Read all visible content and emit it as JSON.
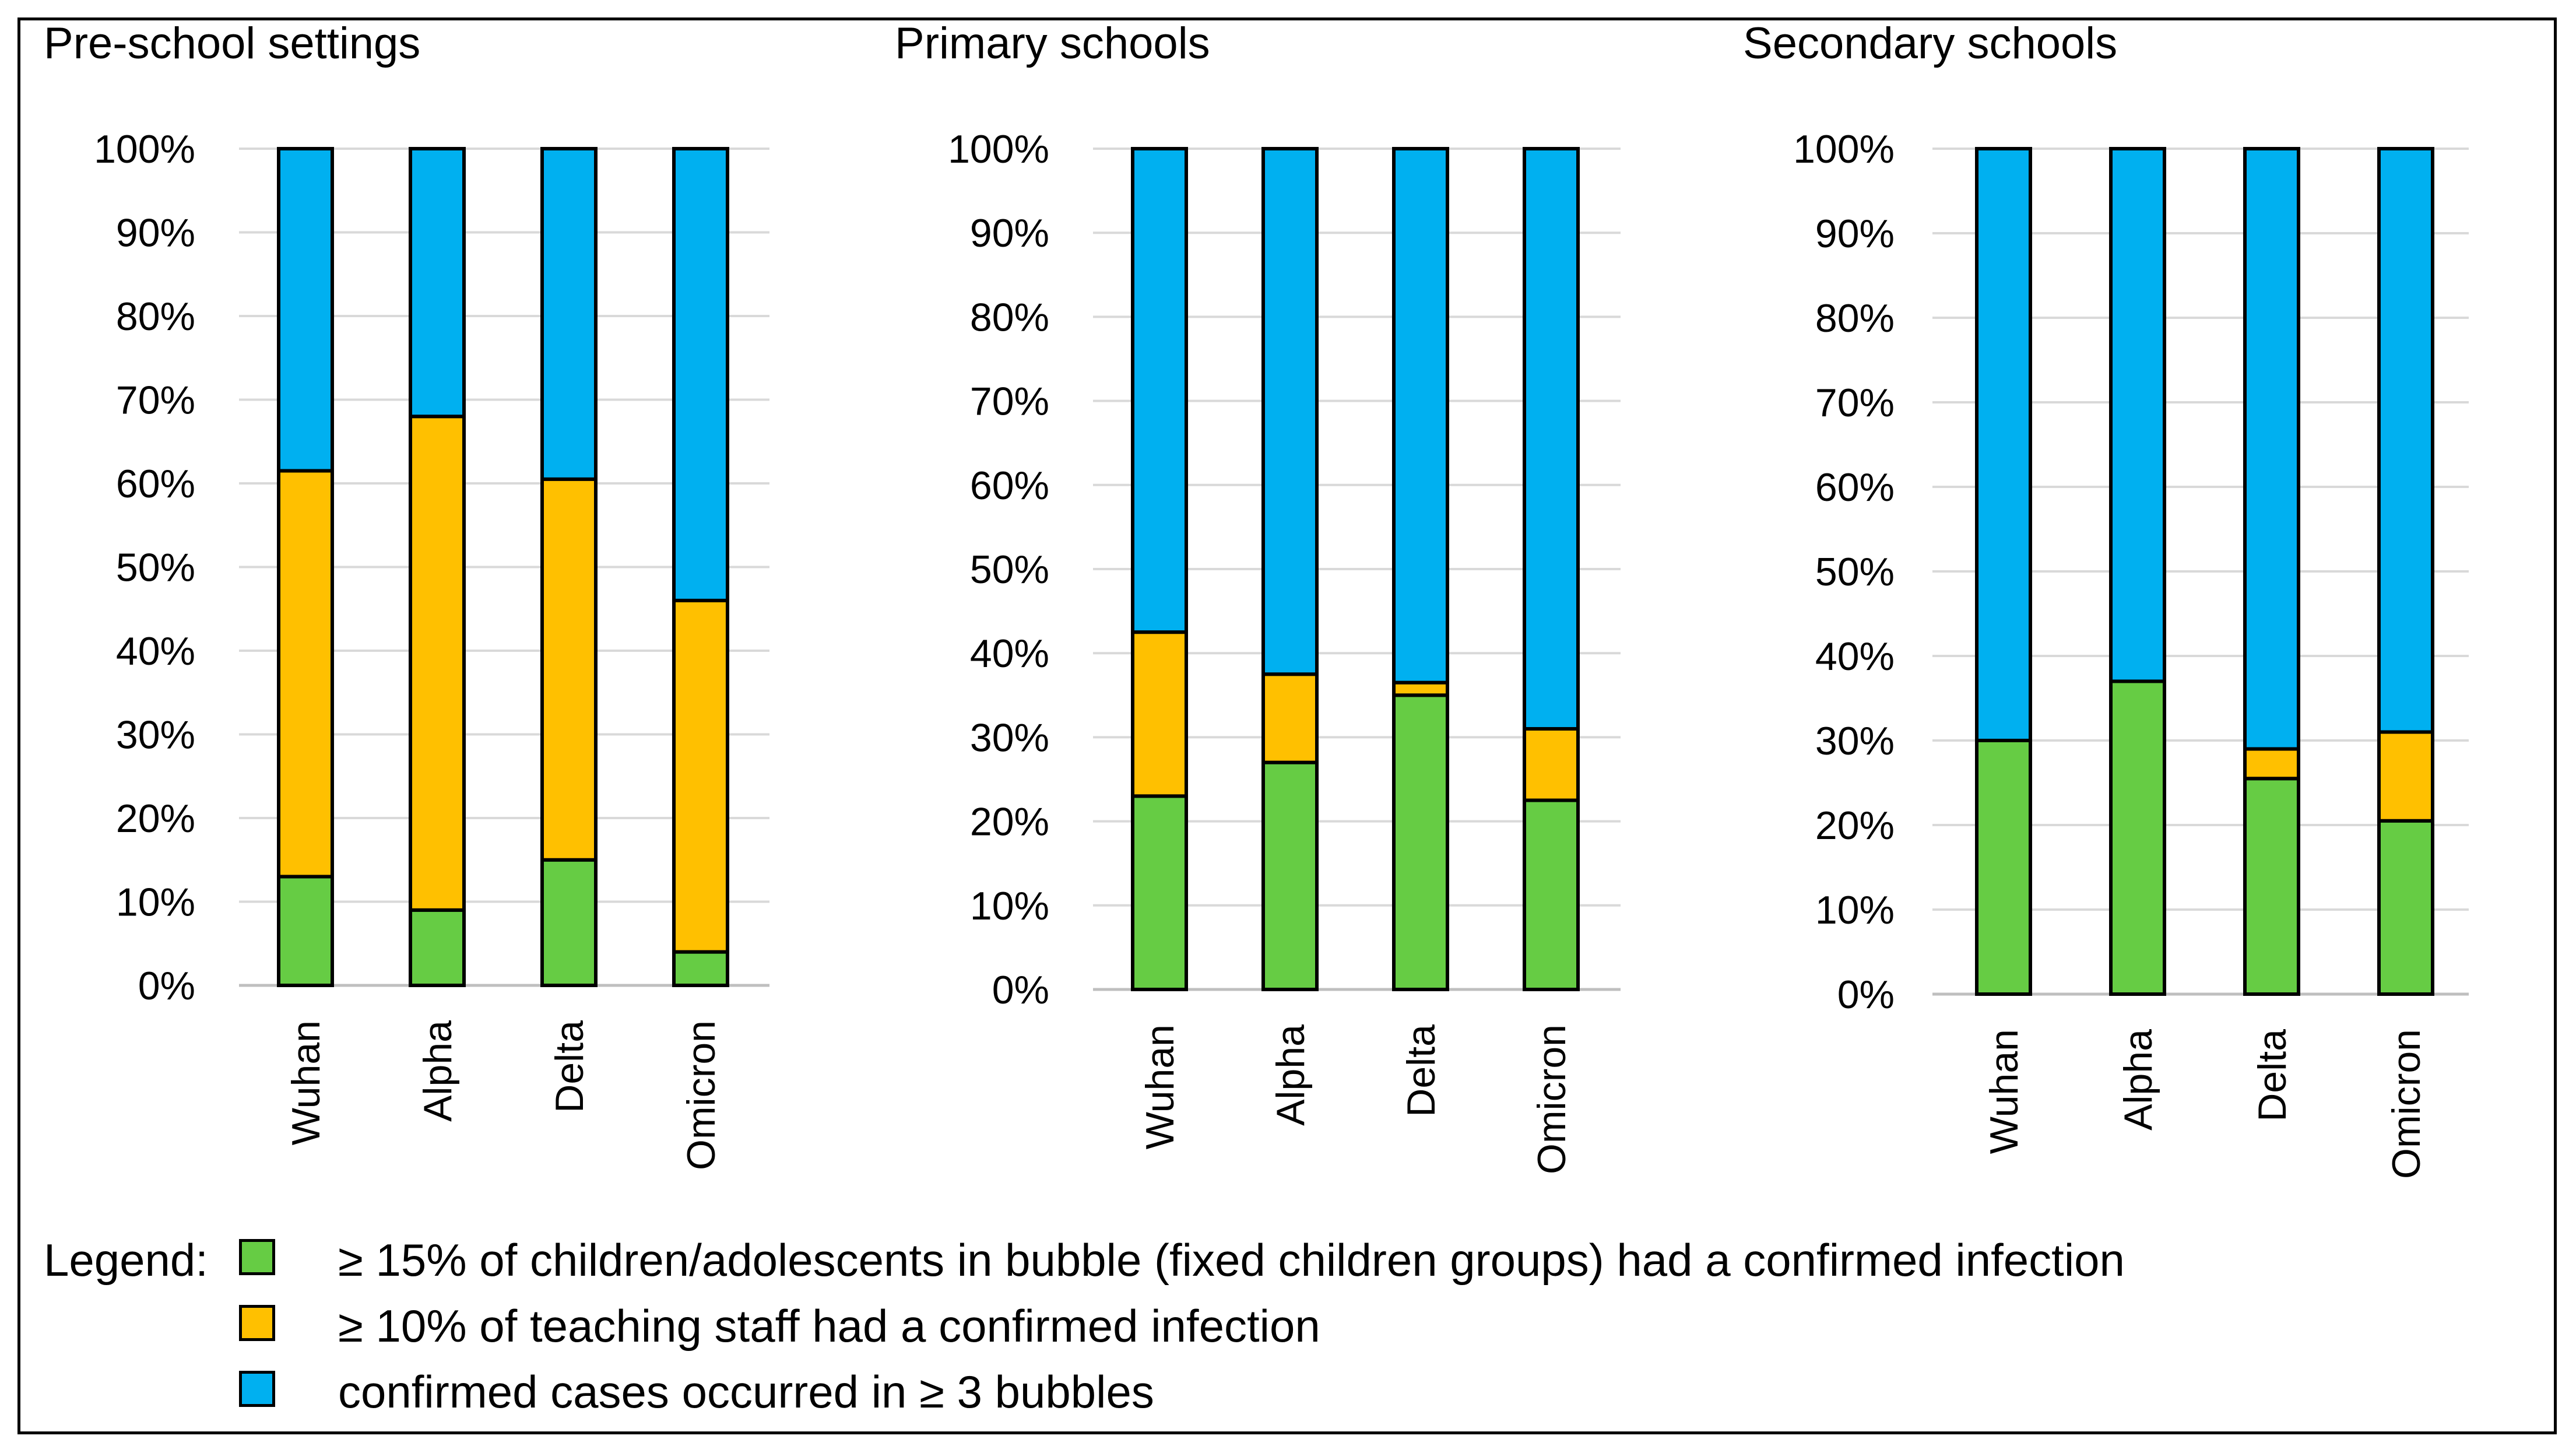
{
  "colors": {
    "green": "#66cc44",
    "orange": "#ffc000",
    "blue": "#00b0f0",
    "grid": "#d9d9d9",
    "axis": "#bfbfbf",
    "outline": "#000000"
  },
  "legend": {
    "title": "Legend:",
    "items": [
      {
        "label": "≥ 15% of children/adolescents in bubble (fixed children groups) had a confirmed infection",
        "color_key": "green"
      },
      {
        "label": "≥ 10% of teaching staff had a confirmed infection",
        "color_key": "orange"
      },
      {
        "label": "confirmed cases occurred in ≥ 3 bubbles",
        "color_key": "blue"
      }
    ]
  },
  "chart_data": [
    {
      "type": "bar",
      "stacked": true,
      "title": "Pre-school settings",
      "categories": [
        "Wuhan",
        "Alpha",
        "Delta",
        "Omicron"
      ],
      "yticks": [
        "0%",
        "10%",
        "20%",
        "30%",
        "40%",
        "50%",
        "60%",
        "70%",
        "80%",
        "90%",
        "100%"
      ],
      "ylim": [
        0,
        100
      ],
      "series": [
        {
          "name": "≥ 15% of children/adolescents in bubble (fixed children groups) had a confirmed infection",
          "color_key": "green",
          "values": [
            13,
            9,
            15,
            4
          ]
        },
        {
          "name": "≥ 10% of teaching staff had a confirmed infection",
          "color_key": "orange",
          "values": [
            48.5,
            59,
            45.5,
            42
          ]
        },
        {
          "name": "confirmed cases occurred in ≥ 3 bubbles",
          "color_key": "blue",
          "values": [
            38.5,
            32,
            39.5,
            54
          ]
        }
      ]
    },
    {
      "type": "bar",
      "stacked": true,
      "title": "Primary schools",
      "categories": [
        "Wuhan",
        "Alpha",
        "Delta",
        "Omicron"
      ],
      "yticks": [
        "0%",
        "10%",
        "20%",
        "30%",
        "40%",
        "50%",
        "60%",
        "70%",
        "80%",
        "90%",
        "100%"
      ],
      "ylim": [
        0,
        100
      ],
      "series": [
        {
          "name": "≥ 15% of children/adolescents in bubble (fixed children groups) had a confirmed infection",
          "color_key": "green",
          "values": [
            23,
            27,
            35,
            22.5
          ]
        },
        {
          "name": "≥ 10% of teaching staff had a confirmed infection",
          "color_key": "orange",
          "values": [
            19.5,
            10.5,
            1.5,
            8.5
          ]
        },
        {
          "name": "confirmed cases occurred in ≥ 3 bubbles",
          "color_key": "blue",
          "values": [
            57.5,
            62.5,
            63.5,
            69
          ]
        }
      ]
    },
    {
      "type": "bar",
      "stacked": true,
      "title": "Secondary schools",
      "categories": [
        "Wuhan",
        "Alpha",
        "Delta",
        "Omicron"
      ],
      "yticks": [
        "0%",
        "10%",
        "20%",
        "30%",
        "40%",
        "50%",
        "60%",
        "70%",
        "80%",
        "90%",
        "100%"
      ],
      "ylim": [
        0,
        100
      ],
      "series": [
        {
          "name": "≥ 15% of children/adolescents in bubble (fixed children groups) had a confirmed infection",
          "color_key": "green",
          "values": [
            30,
            37,
            25.5,
            20.5
          ]
        },
        {
          "name": "≥ 10% of teaching staff had a confirmed infection",
          "color_key": "orange",
          "values": [
            0,
            0,
            3.5,
            10.5
          ]
        },
        {
          "name": "confirmed cases occurred in ≥ 3 bubbles",
          "color_key": "blue",
          "values": [
            70,
            63,
            71,
            69
          ]
        }
      ]
    }
  ]
}
